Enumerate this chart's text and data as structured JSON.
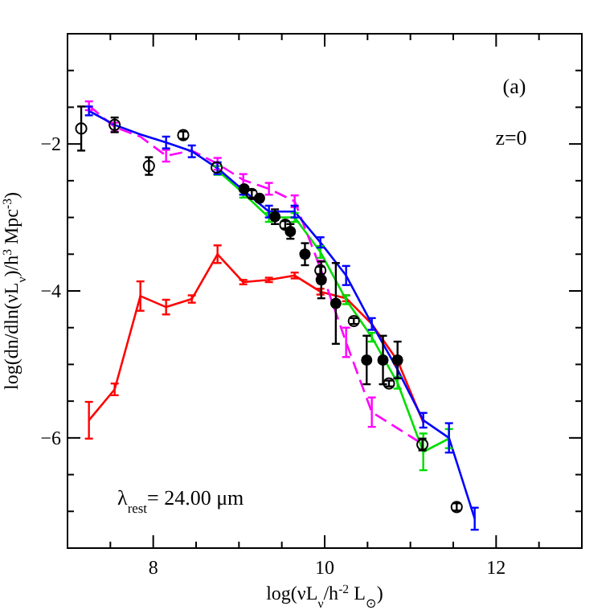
{
  "chart_data": {
    "type": "line",
    "xlabel": "log(νL$_{ν}$/h$^{-2}$ L$_{⊙}$)",
    "ylabel": "log(dn/dln(νL$_{ν}$)/h$^{3}$ Mpc$^{-3}$)",
    "xlim": [
      7,
      13
    ],
    "ylim": [
      -7.5,
      -0.5
    ],
    "xticks": [
      {
        "value": 7.5,
        "label": null
      },
      8,
      {
        "value": 8.5,
        "label": null
      },
      {
        "value": 9,
        "label": null
      },
      {
        "value": 9.5,
        "label": null
      },
      10,
      {
        "value": 10.5,
        "label": null
      },
      {
        "value": 11,
        "label": null
      },
      {
        "value": 11.5,
        "label": null
      },
      12,
      {
        "value": 12.5,
        "label": null
      }
    ],
    "yticks": [
      {
        "value": -7,
        "label": null
      },
      {
        "value": -6.5,
        "label": null
      },
      -6,
      {
        "value": -5.5,
        "label": null
      },
      {
        "value": -5,
        "label": null
      },
      {
        "value": -4.5,
        "label": null
      },
      -4,
      {
        "value": -3.5,
        "label": null
      },
      {
        "value": -3,
        "label": null
      },
      {
        "value": -2.5,
        "label": null
      },
      -2,
      {
        "value": -1.5,
        "label": null
      },
      {
        "value": -1,
        "label": null
      }
    ],
    "grid": false,
    "series": [
      {
        "type": "line",
        "color": "#ff0000",
        "line_style": "solid",
        "marker": "none",
        "x": [
          7.25,
          7.55,
          7.85,
          8.15,
          8.45,
          8.75,
          9.05,
          9.35,
          9.65,
          9.95,
          10.25,
          10.55,
          10.85,
          11.15
        ],
        "values": [
          -5.76,
          -5.34,
          -4.07,
          -4.22,
          -4.11,
          -3.5,
          -3.88,
          -3.85,
          -3.79,
          -4.01,
          -4.1,
          -4.45,
          -4.95,
          -5.79
        ],
        "errors": [
          0.25,
          0.08,
          0.2,
          0.1,
          0.05,
          0.12,
          0.03,
          0.03,
          0.04,
          0.04,
          0.04,
          null,
          0.05,
          null
        ]
      },
      {
        "type": "line",
        "color": "#00dd00",
        "line_style": "solid",
        "marker": "none",
        "x": [
          8.75,
          9.05,
          9.35,
          9.65,
          9.95,
          10.25,
          10.55,
          10.85,
          11.15,
          11.45
        ],
        "values": [
          -2.36,
          -2.67,
          -3.0,
          -3.0,
          -3.47,
          -4.12,
          -4.63,
          -5.25,
          -6.19,
          -6.01
        ],
        "errors": [
          0.06,
          0.06,
          0.06,
          0.06,
          0.08,
          0.06,
          0.06,
          0.08,
          0.25,
          0.13
        ]
      },
      {
        "type": "line",
        "color": "#ff00ff",
        "line_style": "dashed",
        "marker": "none",
        "x": [
          7.25,
          7.55,
          7.85,
          8.15,
          8.45,
          8.75,
          9.05,
          9.35,
          9.65,
          9.95,
          10.25,
          10.55,
          11.15
        ],
        "values": [
          -1.48,
          -1.77,
          -1.9,
          -2.16,
          -2.09,
          -2.27,
          -2.49,
          -2.61,
          -2.78,
          -3.69,
          -4.7,
          -5.65,
          -6.09
        ],
        "errors": [
          0.06,
          0.06,
          null,
          0.08,
          null,
          0.08,
          0.08,
          0.08,
          0.08,
          0.1,
          0.2,
          0.2,
          null
        ]
      },
      {
        "type": "line",
        "color": "#0000ff",
        "line_style": "solid",
        "marker": "none",
        "x": [
          7.25,
          7.55,
          7.85,
          8.15,
          8.45,
          8.75,
          9.05,
          9.35,
          9.65,
          9.95,
          10.25,
          10.55,
          10.85,
          11.15,
          11.45,
          11.75
        ],
        "values": [
          -1.55,
          -1.74,
          -1.87,
          -1.98,
          -2.1,
          -2.33,
          -2.63,
          -2.92,
          -2.92,
          -3.34,
          -3.79,
          -4.45,
          -5.07,
          -5.76,
          -6.0,
          -7.1
        ],
        "errors": [
          0.06,
          null,
          null,
          0.08,
          0.08,
          0.08,
          0.06,
          0.08,
          0.08,
          0.07,
          0.13,
          0.08,
          0.12,
          0.1,
          0.2,
          0.15
        ]
      },
      {
        "type": "scatter",
        "color": "#000000",
        "marker": "open-circle",
        "x": [
          7.16,
          7.55,
          7.95,
          8.35,
          8.74,
          9.15,
          9.54,
          9.95,
          10.34,
          10.75,
          11.14,
          11.54
        ],
        "values": [
          -1.79,
          -1.74,
          -2.3,
          -1.88,
          -2.32,
          -2.68,
          -3.1,
          -3.72,
          -4.41,
          -5.26,
          -6.09,
          -6.94
        ],
        "errors": [
          0.3,
          0.1,
          0.12,
          0.05,
          null,
          0.05,
          0.05,
          0.05,
          0.04,
          0.04,
          0.08,
          0.05
        ]
      },
      {
        "type": "scatter",
        "color": "#000000",
        "marker": "circle",
        "x": [
          9.06,
          9.24,
          9.42,
          9.6,
          9.77,
          9.96,
          10.13,
          10.49,
          10.68,
          10.85
        ],
        "values": [
          -2.61,
          -2.74,
          -2.99,
          -3.19,
          -3.5,
          -3.85,
          -4.17,
          -4.94,
          -4.94,
          -4.94
        ],
        "errors": [
          0.04,
          0.04,
          0.1,
          0.1,
          0.15,
          0.25,
          0.55,
          0.33,
          0.33,
          0.25
        ]
      }
    ],
    "annotations": [
      "(a)",
      "z=0",
      "λ$_{rest}$= 24.00 μm"
    ]
  }
}
